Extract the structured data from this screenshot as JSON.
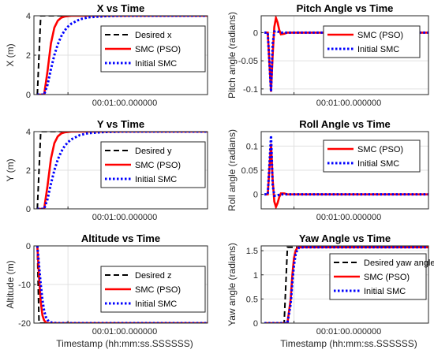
{
  "chart_data": [
    {
      "type": "line",
      "title": "X vs Time",
      "ylabel": "X (m)",
      "xlabel": "",
      "xtick_label": "00:01:00.000000",
      "ylim": [
        0,
        4
      ],
      "yticks": [
        0,
        2,
        4
      ],
      "legend": "top-right",
      "x": [
        0,
        2,
        4,
        6,
        8,
        10,
        12,
        14,
        16,
        18,
        20,
        25,
        30,
        40,
        50,
        60,
        80,
        100
      ],
      "series": [
        {
          "name": "Desired x",
          "color": "#000000",
          "style": "dashed",
          "values": [
            0,
            4,
            4,
            4,
            4,
            4,
            4,
            4,
            4,
            4,
            4,
            4,
            4,
            4,
            4,
            4,
            4,
            4
          ]
        },
        {
          "name": "SMC (PSO)",
          "color": "#ff0000",
          "style": "solid",
          "values": [
            0,
            0,
            0,
            1.2,
            2.6,
            3.4,
            3.75,
            3.9,
            3.96,
            3.98,
            4,
            4,
            4,
            4,
            4,
            4,
            4,
            4
          ]
        },
        {
          "name": "Initial SMC",
          "color": "#0000ff",
          "style": "dotted",
          "values": [
            0,
            0,
            0,
            0.5,
            1.3,
            2.0,
            2.55,
            2.95,
            3.25,
            3.45,
            3.6,
            3.82,
            3.92,
            3.98,
            4,
            4,
            4,
            4
          ]
        }
      ]
    },
    {
      "type": "line",
      "title": "Pitch Angle vs Time",
      "ylabel": "Pitch angle (radians)",
      "xlabel": "",
      "xtick_label": "00:01:00.000000",
      "ylim": [
        -0.11,
        0.03
      ],
      "yticks": [
        -0.1,
        -0.05,
        0
      ],
      "legend": "top-right",
      "x": [
        0,
        2,
        4,
        5,
        6,
        7,
        8,
        9,
        10,
        12,
        14,
        16,
        20,
        30,
        100
      ],
      "series": [
        {
          "name": "SMC (PSO)",
          "color": "#ff0000",
          "style": "solid",
          "values": [
            0,
            0,
            -0.105,
            -0.04,
            0.01,
            0.026,
            0.018,
            0.005,
            -0.003,
            -0.002,
            0,
            0,
            0,
            0,
            0
          ]
        },
        {
          "name": "Initial SMC",
          "color": "#0000ff",
          "style": "dotted",
          "values": [
            0,
            0,
            -0.105,
            -0.02,
            0.002,
            0.003,
            0.002,
            0.001,
            0,
            0,
            0,
            0,
            0,
            0,
            0
          ]
        }
      ]
    },
    {
      "type": "line",
      "title": "Y vs Time",
      "ylabel": "Y (m)",
      "xlabel": "",
      "xtick_label": "00:01:00.000000",
      "ylim": [
        0,
        4
      ],
      "yticks": [
        0,
        2,
        4
      ],
      "legend": "top-right",
      "x": [
        0,
        2,
        4,
        6,
        8,
        10,
        12,
        14,
        16,
        18,
        20,
        25,
        30,
        40,
        50,
        60,
        80,
        100
      ],
      "series": [
        {
          "name": "Desired y",
          "color": "#000000",
          "style": "dashed",
          "values": [
            0,
            4,
            4,
            4,
            4,
            4,
            4,
            4,
            4,
            4,
            4,
            4,
            4,
            4,
            4,
            4,
            4,
            4
          ]
        },
        {
          "name": "SMC (PSO)",
          "color": "#ff0000",
          "style": "solid",
          "values": [
            0,
            0,
            0,
            1.2,
            2.6,
            3.4,
            3.75,
            3.9,
            3.96,
            3.98,
            4,
            4,
            4,
            4,
            4,
            4,
            4,
            4
          ]
        },
        {
          "name": "Initial SMC",
          "color": "#0000ff",
          "style": "dotted",
          "values": [
            0,
            0,
            0,
            0.5,
            1.3,
            2.0,
            2.55,
            2.95,
            3.25,
            3.45,
            3.6,
            3.82,
            3.92,
            3.98,
            4,
            4,
            4,
            4
          ]
        }
      ]
    },
    {
      "type": "line",
      "title": "Roll Angle vs Time",
      "ylabel": "Roll angle (radians)",
      "xlabel": "",
      "xtick_label": "00:01:00.000000",
      "ylim": [
        -0.03,
        0.13
      ],
      "yticks": [
        0,
        0.05,
        0.1
      ],
      "legend": "top-right",
      "x": [
        0,
        2,
        4,
        5,
        6,
        7,
        8,
        9,
        10,
        12,
        14,
        16,
        20,
        30,
        100
      ],
      "series": [
        {
          "name": "SMC (PSO)",
          "color": "#ff0000",
          "style": "solid",
          "values": [
            0,
            0,
            0.105,
            0.03,
            -0.015,
            -0.026,
            -0.018,
            -0.006,
            0.002,
            0.002,
            0,
            0,
            0,
            0,
            0
          ]
        },
        {
          "name": "Initial SMC",
          "color": "#0000ff",
          "style": "dotted",
          "values": [
            0,
            0,
            0.122,
            0.02,
            -0.003,
            -0.003,
            -0.002,
            -0.001,
            0,
            0,
            0,
            0,
            0,
            0,
            0
          ]
        }
      ]
    },
    {
      "type": "line",
      "title": "Altitude vs Time",
      "ylabel": "Altitude (m)",
      "xlabel": "Timestamp (hh:mm:ss.SSSSSS)",
      "xtick_label": "00:01:00.000000",
      "ylim": [
        -20,
        0
      ],
      "yticks": [
        -20,
        -10,
        0
      ],
      "legend": "top-right",
      "x": [
        0,
        1,
        2,
        3,
        4,
        5,
        6,
        7,
        8,
        10,
        12,
        15,
        20,
        30,
        100
      ],
      "series": [
        {
          "name": "Desired z",
          "color": "#000000",
          "style": "dashed",
          "values": [
            0,
            -20,
            -20,
            -20,
            -20,
            -20,
            -20,
            -20,
            -20,
            -20,
            -20,
            -20,
            -20,
            -20,
            -20
          ]
        },
        {
          "name": "SMC (PSO)",
          "color": "#ff0000",
          "style": "solid",
          "values": [
            0,
            -8,
            -14.5,
            -18,
            -19.3,
            -19.8,
            -20,
            -20,
            -20,
            -20,
            -20,
            -20,
            -20,
            -20,
            -20
          ]
        },
        {
          "name": "Initial SMC",
          "color": "#0000ff",
          "style": "dotted",
          "values": [
            0,
            -5,
            -10,
            -14,
            -16.8,
            -18.4,
            -19.2,
            -19.6,
            -19.8,
            -19.95,
            -20,
            -20,
            -20,
            -20,
            -20
          ]
        }
      ]
    },
    {
      "type": "line",
      "title": "Yaw Angle vs Time",
      "ylabel": "Yaw angle (radians)",
      "xlabel": "Timestamp (hh:mm:ss.SSSSSS)",
      "xtick_label": "00:01:00.000000",
      "ylim": [
        0,
        1.6
      ],
      "yticks": [
        0,
        0.5,
        1,
        1.5
      ],
      "legend": "top-right",
      "x": [
        0,
        12,
        14,
        16,
        17,
        18,
        19,
        20,
        21,
        22,
        24,
        26,
        30,
        40,
        100
      ],
      "series": [
        {
          "name": "Desired yaw angle",
          "color": "#000000",
          "style": "dashed",
          "values": [
            0,
            0,
            1.5708,
            1.5708,
            1.5708,
            1.5708,
            1.5708,
            1.5708,
            1.5708,
            1.5708,
            1.5708,
            1.5708,
            1.5708,
            1.5708,
            1.5708
          ]
        },
        {
          "name": "SMC (PSO)",
          "color": "#ff0000",
          "style": "solid",
          "values": [
            0,
            0,
            0,
            0.5,
            1.0,
            1.35,
            1.5,
            1.56,
            1.5708,
            1.5708,
            1.5708,
            1.5708,
            1.5708,
            1.5708,
            1.5708
          ]
        },
        {
          "name": "Initial SMC",
          "color": "#0000ff",
          "style": "dotted",
          "values": [
            0,
            0,
            0,
            0.4,
            0.85,
            1.2,
            1.42,
            1.52,
            1.56,
            1.57,
            1.5708,
            1.5708,
            1.5708,
            1.5708,
            1.5708
          ]
        }
      ]
    }
  ]
}
